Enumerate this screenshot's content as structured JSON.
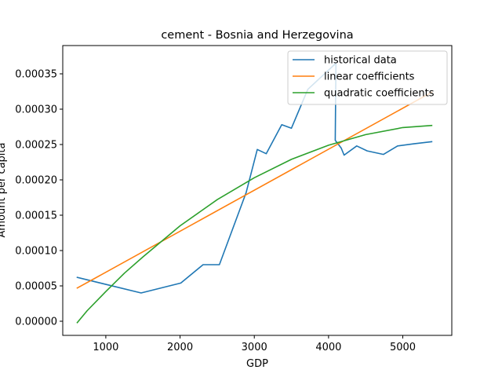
{
  "chart_data": {
    "type": "line",
    "title": "cement - Bosnia and Herzegovina",
    "xlabel": "GDP",
    "ylabel": "Amount per capita",
    "xlim": [
      420,
      5660
    ],
    "ylim": [
      -2e-05,
      0.00039
    ],
    "xticks": [
      1000,
      2000,
      3000,
      4000,
      5000
    ],
    "xtick_labels": [
      "1000",
      "2000",
      "3000",
      "4000",
      "5000"
    ],
    "yticks": [
      0.0,
      5e-05,
      0.0001,
      0.00015,
      0.0002,
      0.00025,
      0.0003,
      0.00035
    ],
    "ytick_labels": [
      "0.00000",
      "0.00005",
      "0.00010",
      "0.00015",
      "0.00020",
      "0.00025",
      "0.00030",
      "0.00035"
    ],
    "grid": false,
    "legend_position": "top-right",
    "series": [
      {
        "name": "historical data",
        "color": "#1f77b4",
        "points": [
          [
            615,
            6.2e-05
          ],
          [
            1475,
            4e-05
          ],
          [
            2010,
            5.4e-05
          ],
          [
            2310,
            8e-05
          ],
          [
            2530,
            8e-05
          ],
          [
            2890,
            0.000182
          ],
          [
            3040,
            0.000243
          ],
          [
            3160,
            0.000237
          ],
          [
            3370,
            0.000278
          ],
          [
            3500,
            0.000273
          ],
          [
            3720,
            0.000328
          ],
          [
            4100,
            0.000365
          ],
          [
            4090,
            0.000256
          ],
          [
            4170,
            0.000245
          ],
          [
            4210,
            0.000235
          ],
          [
            4380,
            0.000248
          ],
          [
            4520,
            0.000241
          ],
          [
            4740,
            0.000236
          ],
          [
            4930,
            0.000248
          ],
          [
            5150,
            0.000251
          ],
          [
            5390,
            0.000254
          ]
        ]
      },
      {
        "name": "linear coefficients",
        "color": "#ff7f0e",
        "points": [
          [
            615,
            4.7e-05
          ],
          [
            5390,
            0.000324
          ]
        ]
      },
      {
        "name": "quadratic coefficients",
        "color": "#2ca02c",
        "points": [
          [
            615,
            -2e-06
          ],
          [
            750,
            1.5e-05
          ],
          [
            1000,
            4.2e-05
          ],
          [
            1250,
            6.8e-05
          ],
          [
            1500,
            9.1e-05
          ],
          [
            2000,
            0.000135
          ],
          [
            2500,
            0.000172
          ],
          [
            3000,
            0.000203
          ],
          [
            3500,
            0.000229
          ],
          [
            4000,
            0.000249
          ],
          [
            4500,
            0.000264
          ],
          [
            5000,
            0.000274
          ],
          [
            5390,
            0.000277
          ]
        ]
      }
    ]
  }
}
